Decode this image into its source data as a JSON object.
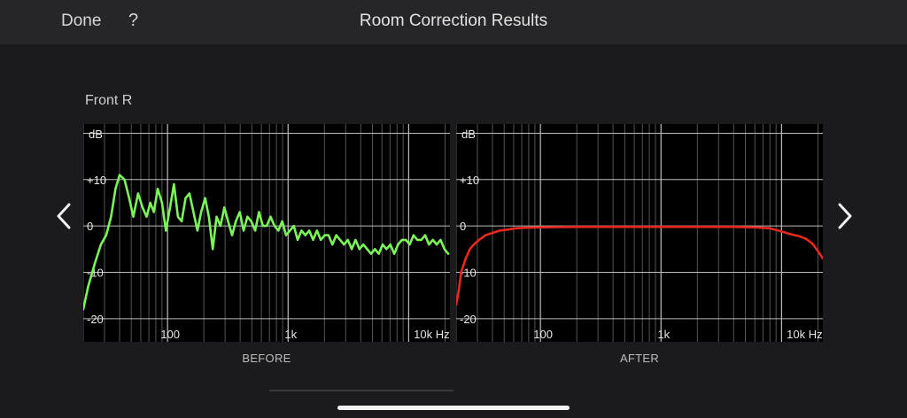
{
  "navbar": {
    "done_label": "Done",
    "help_label": "?",
    "title": "Room Correction Results"
  },
  "speaker": {
    "label": "Front R"
  },
  "icons": {
    "prev": "chevron-left-icon",
    "next": "chevron-right-icon"
  },
  "chart_data": [
    {
      "type": "line",
      "caption": "BEFORE",
      "xscale": "log",
      "xlim": [
        20,
        22000
      ],
      "ylim": [
        -25,
        22
      ],
      "ylabel": "dB",
      "x_tick_labels": [
        {
          "value": 100,
          "label": "100"
        },
        {
          "value": 1000,
          "label": "1k"
        },
        {
          "value": 10000,
          "label": "10k Hz"
        }
      ],
      "y_tick_labels": [
        {
          "value": 10,
          "label": "+10"
        },
        {
          "value": 0,
          "label": "0"
        },
        {
          "value": -10,
          "label": "-10"
        },
        {
          "value": -20,
          "label": "-20"
        }
      ],
      "grid": true,
      "line_color": "#7cf55a",
      "series": [
        {
          "x": [
            20,
            22,
            25,
            28,
            31,
            34,
            37,
            40,
            44,
            48,
            52,
            57,
            62,
            67,
            72,
            77,
            83,
            90,
            97,
            105,
            113,
            122,
            131,
            141,
            152,
            164,
            177,
            190,
            205,
            220,
            237,
            255,
            275,
            296,
            318,
            343,
            369,
            397,
            427,
            460,
            495,
            533,
            574,
            618,
            665,
            716,
            771,
            830,
            893,
            962,
            1035,
            1115,
            1200,
            1292,
            1391,
            1497,
            1612,
            1735,
            1868,
            2011,
            2165,
            2331,
            2509,
            2701,
            2908,
            3131,
            3370,
            3628,
            3906,
            4205,
            4527,
            4874,
            5247,
            5649,
            6081,
            6547,
            7048,
            7588,
            8169,
            8794,
            9468,
            10193,
            10973,
            11814,
            12718,
            13692,
            14741,
            15870,
            17085,
            18394,
            19802,
            21320
          ],
          "y": [
            -18,
            -13,
            -8,
            -4,
            -2,
            2,
            8,
            11,
            10,
            6,
            2,
            7,
            4,
            2,
            5,
            3,
            8,
            5,
            -1,
            4,
            9,
            2,
            1,
            6,
            7,
            3,
            -1,
            3,
            6,
            2,
            -5,
            2,
            0,
            4,
            1,
            -2,
            1,
            3,
            -1,
            2,
            1,
            -1,
            3,
            0,
            0,
            2,
            0,
            -1,
            1,
            -2,
            -1,
            0,
            -3,
            -1,
            -2,
            -1,
            -3,
            -1,
            -3,
            -2,
            -2,
            -4,
            -2,
            -3,
            -4,
            -3,
            -5,
            -3,
            -5,
            -4,
            -5,
            -6,
            -5,
            -6,
            -4,
            -5,
            -4,
            -6,
            -4,
            -3,
            -3,
            -4,
            -2,
            -3,
            -3,
            -2,
            -4,
            -3,
            -4,
            -3,
            -5,
            -6
          ]
        }
      ]
    },
    {
      "type": "line",
      "caption": "AFTER",
      "xscale": "log",
      "xlim": [
        20,
        22000
      ],
      "ylim": [
        -25,
        22
      ],
      "ylabel": "dB",
      "x_tick_labels": [
        {
          "value": 100,
          "label": "100"
        },
        {
          "value": 1000,
          "label": "1k"
        },
        {
          "value": 10000,
          "label": "10k Hz"
        }
      ],
      "y_tick_labels": [
        {
          "value": 10,
          "label": "+10"
        },
        {
          "value": 0,
          "label": "0"
        },
        {
          "value": -10,
          "label": "-10"
        },
        {
          "value": -20,
          "label": "-20"
        }
      ],
      "grid": true,
      "line_color": "#e8281e",
      "series": [
        {
          "x": [
            20,
            21,
            22,
            24,
            26,
            28,
            31,
            35,
            40,
            46,
            53,
            62,
            75,
            100,
            200,
            500,
            1000,
            2000,
            4000,
            6000,
            8000,
            10000,
            12000,
            14000,
            16000,
            18000,
            19500,
            21000,
            22000
          ],
          "y": [
            -17,
            -14,
            -10,
            -7,
            -5,
            -4,
            -3,
            -2,
            -1.5,
            -1,
            -0.8,
            -0.5,
            -0.4,
            -0.3,
            -0.2,
            -0.2,
            -0.2,
            -0.2,
            -0.2,
            -0.3,
            -0.5,
            -1.2,
            -1.8,
            -2.2,
            -2.8,
            -3.8,
            -5,
            -6.2,
            -7
          ]
        }
      ]
    }
  ]
}
